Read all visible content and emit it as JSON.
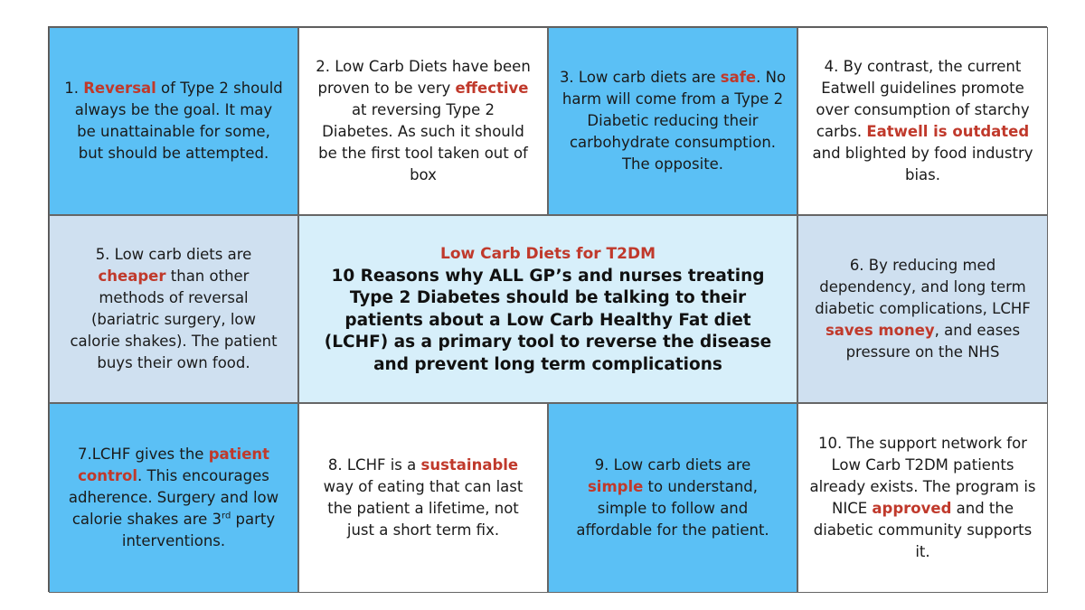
{
  "colors": {
    "blue": "#5bc0f5",
    "grey": "#cfe0f0",
    "center": "#d7effa",
    "highlight": "#c0392b"
  },
  "center": {
    "title": "Low Carb Diets for T2DM",
    "body": "10 Reasons why ALL GP’s and nurses treating Type 2 Diabetes should be talking to their patients about a Low Carb Healthy Fat diet (LCHF) as a primary tool to reverse the disease and prevent long term complications"
  },
  "cells": [
    {
      "a": "1. ",
      "h": "Reversal",
      "b": " of Type 2 should always be the goal. It may be unattainable for some, but should be attempted."
    },
    {
      "a": "2. Low Carb Diets have been proven to be very ",
      "h": "effective",
      "b": " at reversing Type 2 Diabetes. As such it should be the first tool taken out of box"
    },
    {
      "a": "3. Low carb diets are ",
      "h": "safe",
      "b": ". No harm will come from a Type 2 Diabetic reducing their carbohydrate consumption. The opposite."
    },
    {
      "a": "4. By contrast, the current Eatwell guidelines promote over consumption of starchy carbs. ",
      "h": "Eatwell is outdated",
      "b": " and blighted by food industry bias."
    },
    {
      "a": "5. Low carb diets are ",
      "h": "cheaper",
      "b": " than other methods of reversal (bariatric surgery, low calorie shakes). The patient buys their own food."
    },
    {
      "a": "6. By reducing med dependency, and long term diabetic complications, LCHF ",
      "h": "saves money",
      "b": ", and eases pressure on the NHS"
    },
    {
      "a": "7.LCHF gives the ",
      "h": "patient control",
      "b": ". This encourages adherence. Surgery and low calorie shakes are 3",
      "sup": "rd",
      "c": " party interventions."
    },
    {
      "a": "8. LCHF is a ",
      "h": "sustainable",
      "b": " way of eating that can last the patient a lifetime, not just a short term fix."
    },
    {
      "a": "9. Low carb diets are ",
      "h": "simple",
      "b": " to understand, simple to follow and affordable for the patient."
    },
    {
      "a": "10. The support network for Low Carb T2DM patients already exists. The program is NICE ",
      "h": "approved",
      "b": " and the diabetic community supports it."
    }
  ]
}
